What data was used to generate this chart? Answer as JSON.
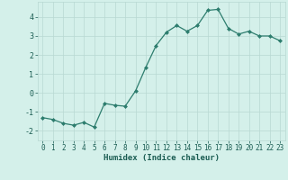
{
  "x": [
    0,
    1,
    2,
    3,
    4,
    5,
    6,
    7,
    8,
    9,
    10,
    11,
    12,
    13,
    14,
    15,
    16,
    17,
    18,
    19,
    20,
    21,
    22,
    23
  ],
  "y": [
    -1.3,
    -1.4,
    -1.6,
    -1.7,
    -1.55,
    -1.8,
    -0.55,
    -0.65,
    -0.7,
    0.1,
    1.35,
    2.5,
    3.2,
    3.55,
    3.25,
    3.55,
    4.35,
    4.4,
    3.4,
    3.1,
    3.25,
    3.0,
    3.0,
    2.75
  ],
  "line_color": "#2d7d6e",
  "marker": "D",
  "marker_size": 2,
  "bg_color": "#d4f0ea",
  "grid_color": "#b8d8d2",
  "xlabel": "Humidex (Indice chaleur)",
  "xlabel_color": "#1a5c52",
  "tick_color": "#1a5c52",
  "xlim": [
    -0.5,
    23.5
  ],
  "ylim": [
    -2.5,
    4.8
  ],
  "yticks": [
    -2,
    -1,
    0,
    1,
    2,
    3,
    4
  ],
  "xticks": [
    0,
    1,
    2,
    3,
    4,
    5,
    6,
    7,
    8,
    9,
    10,
    11,
    12,
    13,
    14,
    15,
    16,
    17,
    18,
    19,
    20,
    21,
    22,
    23
  ]
}
